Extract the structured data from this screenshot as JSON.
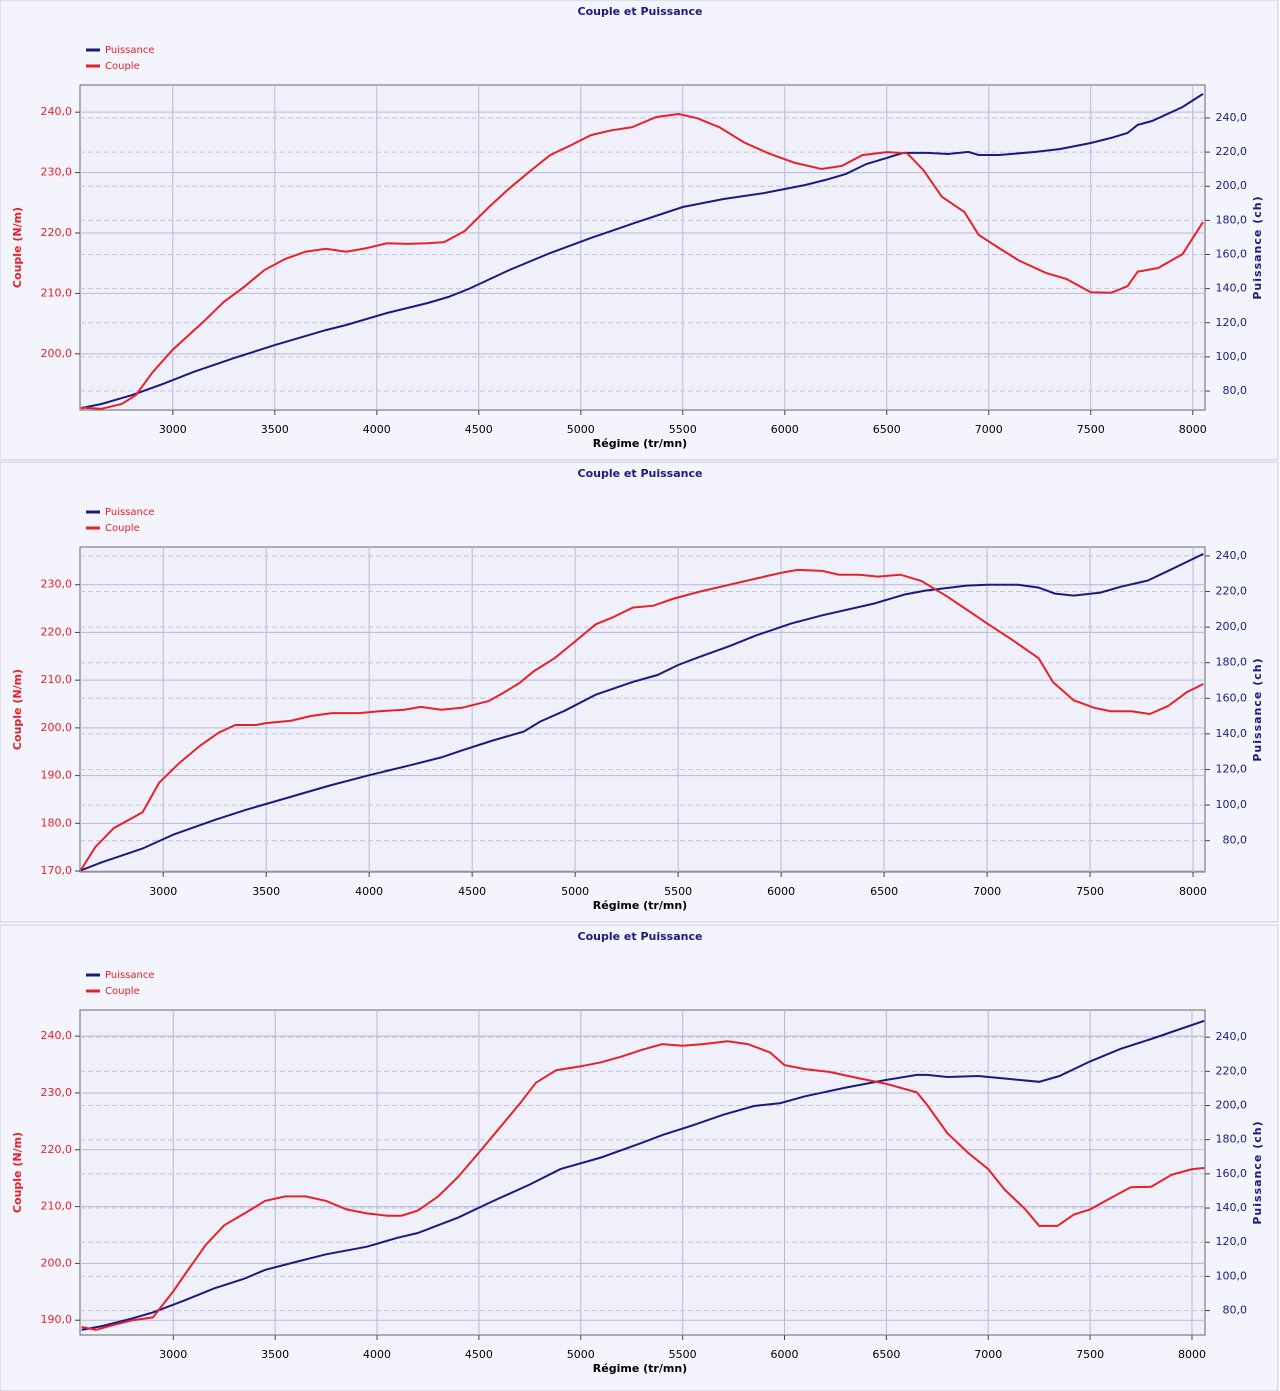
{
  "chart_data": [
    {
      "type": "line",
      "title": "Couple et Puissance",
      "x_label": "Régime (tr/mn)",
      "y_label": "Couple (N/m)",
      "y2_label": "Puissance (ch)",
      "legend": "top-left",
      "grid": true,
      "xlim": [
        2545,
        8060
      ],
      "xticks": [
        3000,
        3500,
        4000,
        4500,
        5000,
        5500,
        6000,
        6500,
        7000,
        7500,
        8000
      ],
      "ylim": [
        190.7,
        244.5
      ],
      "yticks": [
        {
          "value": 200,
          "label": "200,0"
        },
        {
          "value": 210,
          "label": "210,0"
        },
        {
          "value": 220,
          "label": "220,0"
        },
        {
          "value": 230,
          "label": "230,0"
        },
        {
          "value": 240,
          "label": "240,0"
        }
      ],
      "y2lim": [
        68.9,
        259.3
      ],
      "y2ticks": [
        {
          "value": 80,
          "label": "80,0"
        },
        {
          "value": 100,
          "label": "100,0"
        },
        {
          "value": 120,
          "label": "120,0"
        },
        {
          "value": 140,
          "label": "140,0"
        },
        {
          "value": 160,
          "label": "160,0"
        },
        {
          "value": 180,
          "label": "180,0"
        },
        {
          "value": 200,
          "label": "200,0"
        },
        {
          "value": 220,
          "label": "220,0"
        },
        {
          "value": 240,
          "label": "240,0"
        }
      ],
      "series": [
        {
          "name": "Puissance",
          "color": "#1a1a80",
          "axis": "y2",
          "x": [
            2550,
            2650,
            2800,
            2950,
            3100,
            3300,
            3500,
            3750,
            3850,
            4050,
            4250,
            4350,
            4450,
            4650,
            4850,
            5050,
            5250,
            5500,
            5700,
            5900,
            6100,
            6200,
            6300,
            6400,
            6500,
            6580,
            6700,
            6800,
            6900,
            6950,
            7050,
            7230,
            7350,
            7500,
            7600,
            7680,
            7730,
            7800,
            7950,
            8050
          ],
          "values": [
            70.0,
            72.4,
            77.6,
            84.1,
            91.1,
            99.3,
            106.9,
            115.7,
            118.7,
            125.7,
            131.6,
            135.1,
            139.8,
            150.9,
            160.9,
            169.7,
            177.9,
            187.8,
            192.5,
            196.0,
            200.7,
            203.7,
            207.2,
            213.0,
            216.6,
            219.5,
            219.5,
            218.9,
            220.1,
            218.3,
            218.3,
            220.1,
            221.8,
            225.3,
            228.3,
            231.2,
            235.9,
            238.2,
            246.4,
            254.1
          ]
        },
        {
          "name": "Couple",
          "color": "#e8202a",
          "x": [
            2550,
            2650,
            2750,
            2820,
            2900,
            3000,
            3150,
            3250,
            3350,
            3450,
            3550,
            3650,
            3750,
            3850,
            3950,
            4050,
            4150,
            4250,
            4330,
            4430,
            4550,
            4650,
            4750,
            4850,
            4950,
            5050,
            5150,
            5250,
            5370,
            5480,
            5570,
            5680,
            5800,
            5920,
            6050,
            6180,
            6280,
            6380,
            6500,
            6600,
            6680,
            6770,
            6880,
            6950,
            7050,
            7150,
            7280,
            7380,
            7500,
            7600,
            7680,
            7730,
            7830,
            7950,
            8050
          ],
          "values": [
            191.1,
            190.9,
            191.7,
            193.2,
            196.9,
            200.7,
            205.3,
            208.6,
            211.1,
            213.9,
            215.7,
            216.9,
            217.4,
            216.9,
            217.5,
            218.3,
            218.2,
            218.3,
            218.5,
            220.3,
            224.3,
            227.4,
            230.2,
            232.9,
            234.5,
            236.2,
            237.0,
            237.5,
            239.2,
            239.7,
            239.0,
            237.5,
            235.0,
            233.2,
            231.6,
            230.6,
            231.1,
            232.9,
            233.4,
            233.2,
            230.4,
            226.0,
            223.5,
            219.7,
            217.5,
            215.4,
            213.4,
            212.4,
            210.2,
            210.1,
            211.2,
            213.6,
            214.2,
            216.5,
            221.8
          ]
        }
      ]
    },
    {
      "type": "line",
      "title": "Couple et Puissance",
      "x_label": "Régime (tr/mn)",
      "y_label": "Couple (N/m)",
      "y2_label": "Puissance (ch)",
      "legend": "top-left",
      "grid": true,
      "xlim": [
        2596,
        8058
      ],
      "xticks": [
        3000,
        3500,
        4000,
        4500,
        5000,
        5500,
        6000,
        6500,
        7000,
        7500,
        8000
      ],
      "ylim": [
        169.8,
        237.9
      ],
      "yticks": [
        {
          "value": 170,
          "label": "170,0"
        },
        {
          "value": 180,
          "label": "180,0"
        },
        {
          "value": 190,
          "label": "190,0"
        },
        {
          "value": 200,
          "label": "200,0"
        },
        {
          "value": 210,
          "label": "210,0"
        },
        {
          "value": 220,
          "label": "220,0"
        },
        {
          "value": 230,
          "label": "230,0"
        }
      ],
      "y2lim": [
        62.4,
        245.0
      ],
      "y2ticks": [
        {
          "value": 80,
          "label": "80,0"
        },
        {
          "value": 100,
          "label": "100,0"
        },
        {
          "value": 120,
          "label": "120,0"
        },
        {
          "value": 140,
          "label": "140,0"
        },
        {
          "value": 160,
          "label": "160,0"
        },
        {
          "value": 180,
          "label": "180,0"
        },
        {
          "value": 200,
          "label": "200,0"
        },
        {
          "value": 220,
          "label": "220,0"
        },
        {
          "value": 240,
          "label": "240,0"
        }
      ],
      "series": [
        {
          "name": "Puissance",
          "color": "#1a1a80",
          "axis": "y2",
          "x": [
            2600,
            2700,
            2900,
            3050,
            3250,
            3400,
            3600,
            3800,
            4000,
            4200,
            4350,
            4450,
            4600,
            4750,
            4830,
            4950,
            5100,
            5280,
            5400,
            5500,
            5600,
            5750,
            5880,
            6050,
            6200,
            6450,
            6600,
            6700,
            6900,
            7000,
            7150,
            7250,
            7330,
            7420,
            7550,
            7650,
            7780,
            7880,
            7980,
            8050
          ],
          "values": [
            63.3,
            67.8,
            75.6,
            83.4,
            91.7,
            97.3,
            104.0,
            110.7,
            116.8,
            122.4,
            126.8,
            130.7,
            136.3,
            141.3,
            146.9,
            153.0,
            162.0,
            169.2,
            173.1,
            178.7,
            183.1,
            189.3,
            195.4,
            202.1,
            206.6,
            213.2,
            218.3,
            220.5,
            223.3,
            223.8,
            223.8,
            222.2,
            218.8,
            217.7,
            219.4,
            222.7,
            226.1,
            231.6,
            237.2,
            241.1
          ]
        },
        {
          "name": "Couple",
          "color": "#e8202a",
          "x": [
            2600,
            2670,
            2760,
            2900,
            2980,
            3080,
            3180,
            3270,
            3350,
            3450,
            3500,
            3620,
            3720,
            3820,
            3950,
            4050,
            4170,
            4250,
            4350,
            4450,
            4580,
            4650,
            4730,
            4800,
            4900,
            5000,
            5100,
            5180,
            5280,
            5380,
            5480,
            5600,
            5750,
            5880,
            6000,
            6080,
            6200,
            6280,
            6380,
            6470,
            6580,
            6680,
            6800,
            6900,
            7000,
            7120,
            7250,
            7320,
            7420,
            7520,
            7600,
            7700,
            7790,
            7880,
            7970,
            8050
          ],
          "values": [
            170.2,
            175.0,
            179.0,
            182.3,
            188.5,
            192.7,
            196.3,
            199.0,
            200.6,
            200.6,
            201.0,
            201.5,
            202.5,
            203.1,
            203.1,
            203.5,
            203.8,
            204.4,
            203.8,
            204.2,
            205.6,
            207.3,
            209.4,
            211.9,
            214.6,
            218.1,
            221.7,
            223.1,
            225.2,
            225.6,
            227.1,
            228.5,
            230.0,
            231.3,
            232.5,
            233.1,
            232.9,
            232.1,
            232.1,
            231.7,
            232.1,
            230.8,
            227.7,
            224.8,
            221.9,
            218.5,
            214.6,
            209.6,
            205.8,
            204.2,
            203.5,
            203.5,
            202.9,
            204.6,
            207.5,
            209.2
          ]
        }
      ]
    },
    {
      "type": "line",
      "title": "Couple et Puissance",
      "x_label": "Régime (tr/mn)",
      "y_label": "Couple (N/m)",
      "y2_label": "Puissance (ch)",
      "legend": "top-left",
      "grid": true,
      "xlim": [
        2542,
        8064
      ],
      "xticks": [
        3000,
        3500,
        4000,
        4500,
        5000,
        5500,
        6000,
        6500,
        7000,
        7500,
        8000
      ],
      "ylim": [
        187.4,
        244.6
      ],
      "yticks": [
        {
          "value": 190,
          "label": "190,0"
        },
        {
          "value": 200,
          "label": "200,0"
        },
        {
          "value": 210,
          "label": "210,0"
        },
        {
          "value": 220,
          "label": "220,0"
        },
        {
          "value": 230,
          "label": "230,0"
        },
        {
          "value": 240,
          "label": "240,0"
        }
      ],
      "y2lim": [
        65.7,
        255.9
      ],
      "y2ticks": [
        {
          "value": 80,
          "label": "80,0"
        },
        {
          "value": 100,
          "label": "100,0"
        },
        {
          "value": 120,
          "label": "120,0"
        },
        {
          "value": 140,
          "label": "140,0"
        },
        {
          "value": 160,
          "label": "160,0"
        },
        {
          "value": 180,
          "label": "180,0"
        },
        {
          "value": 200,
          "label": "200,0"
        },
        {
          "value": 220,
          "label": "220,0"
        },
        {
          "value": 240,
          "label": "240,0"
        }
      ],
      "series": [
        {
          "name": "Puissance",
          "color": "#1a1a80",
          "axis": "y2",
          "x": [
            2550,
            2650,
            2800,
            2900,
            3050,
            3200,
            3350,
            3450,
            3600,
            3750,
            3950,
            4100,
            4200,
            4400,
            4550,
            4750,
            4900,
            5100,
            5300,
            5400,
            5550,
            5700,
            5850,
            5980,
            6100,
            6300,
            6500,
            6650,
            6700,
            6800,
            6950,
            7100,
            7250,
            7350,
            7500,
            7650,
            7800,
            7950,
            8060
          ],
          "values": [
            68.7,
            70.9,
            75.5,
            78.9,
            85.7,
            93.0,
            98.7,
            103.8,
            108.4,
            112.9,
            117.4,
            122.6,
            125.4,
            134.5,
            143.0,
            153.8,
            162.8,
            169.6,
            178.2,
            182.7,
            188.4,
            194.6,
            199.7,
            201.4,
            205.4,
            210.5,
            215.0,
            217.9,
            217.9,
            216.7,
            217.3,
            215.6,
            213.9,
            217.3,
            225.8,
            233.2,
            238.9,
            245.1,
            249.6
          ]
        },
        {
          "name": "Couple",
          "color": "#e8202a",
          "x": [
            2550,
            2620,
            2700,
            2800,
            2900,
            3000,
            3060,
            3160,
            3250,
            3350,
            3450,
            3550,
            3650,
            3750,
            3850,
            3950,
            4050,
            4120,
            4200,
            4300,
            4400,
            4500,
            4600,
            4700,
            4780,
            4880,
            5000,
            5100,
            5200,
            5300,
            5400,
            5500,
            5600,
            5720,
            5820,
            5930,
            6000,
            6100,
            6220,
            6350,
            6500,
            6600,
            6650,
            6700,
            6800,
            6900,
            7000,
            7080,
            7180,
            7250,
            7340,
            7420,
            7500,
            7600,
            7700,
            7800,
            7900,
            8000,
            8060
          ],
          "values": [
            188.8,
            188.3,
            189.1,
            190.0,
            190.5,
            195.1,
            198.2,
            203.3,
            206.7,
            208.8,
            211.0,
            211.8,
            211.8,
            211.0,
            209.5,
            208.8,
            208.4,
            208.4,
            209.3,
            211.8,
            215.3,
            219.5,
            223.8,
            228.1,
            231.8,
            234.0,
            234.7,
            235.4,
            236.4,
            237.6,
            238.6,
            238.3,
            238.6,
            239.1,
            238.6,
            237.1,
            234.9,
            234.2,
            233.7,
            232.7,
            231.6,
            230.6,
            230.1,
            227.9,
            222.9,
            219.5,
            216.6,
            213.0,
            209.6,
            206.6,
            206.6,
            208.6,
            209.5,
            211.5,
            213.4,
            213.5,
            215.6,
            216.6,
            216.8
          ]
        }
      ]
    }
  ]
}
